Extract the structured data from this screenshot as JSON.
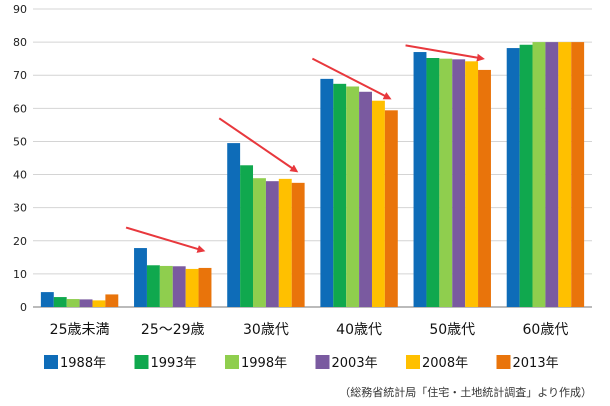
{
  "chart_data": {
    "type": "bar",
    "title": "",
    "xlabel": "",
    "ylabel": "",
    "ylim": [
      0,
      90
    ],
    "yticks": [
      0,
      10,
      20,
      30,
      40,
      50,
      60,
      70,
      80,
      90
    ],
    "grid": true,
    "legend_position": "bottom",
    "categories": [
      "25歳未満",
      "25〜29歳",
      "30歳代",
      "40歳代",
      "50歳代",
      "60歳代"
    ],
    "series": [
      {
        "name": "1988年",
        "color": "#0e6cb8",
        "values": [
          4.5,
          17.8,
          49.5,
          68.9,
          77.0,
          78.2
        ]
      },
      {
        "name": "1993年",
        "color": "#10a84e",
        "values": [
          3.0,
          12.6,
          42.8,
          67.4,
          75.2,
          79.2
        ]
      },
      {
        "name": "1998年",
        "color": "#8fce4e",
        "values": [
          2.4,
          12.4,
          38.9,
          66.6,
          75.0,
          80.0
        ]
      },
      {
        "name": "2003年",
        "color": "#7a5aa0",
        "values": [
          2.3,
          12.3,
          38.0,
          65.0,
          74.8,
          80.0
        ]
      },
      {
        "name": "2008年",
        "color": "#ffc000",
        "values": [
          2.0,
          11.5,
          38.7,
          62.3,
          74.2,
          80.0
        ]
      },
      {
        "name": "2013年",
        "color": "#e9740b",
        "values": [
          3.8,
          11.8,
          37.5,
          59.4,
          71.6,
          80.0
        ]
      }
    ],
    "trend_arrows": [
      {
        "category_index": 1,
        "from": 24,
        "to": 17
      },
      {
        "category_index": 2,
        "from": 57,
        "to": 41
      },
      {
        "category_index": 3,
        "from": 75,
        "to": 63
      },
      {
        "category_index": 4,
        "from": 79,
        "to": 75
      }
    ],
    "arrow_color": "#e8383d",
    "source_note": "（総務省統計局「住宅・土地統計調査」より作成）"
  }
}
